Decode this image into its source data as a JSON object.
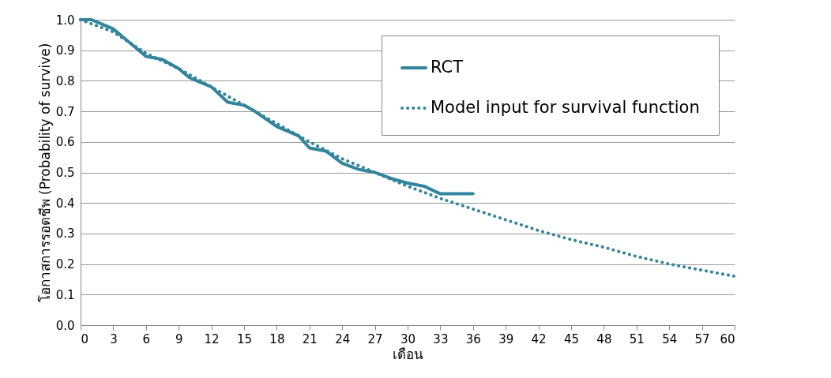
{
  "chart_data": {
    "type": "line",
    "xlabel": "เดือน",
    "ylabel": "โอกาสการรอดชีพ (Probability of survive)",
    "xlim": [
      0,
      60
    ],
    "xticks": [
      0,
      3,
      6,
      9,
      12,
      15,
      18,
      21,
      24,
      27,
      30,
      33,
      36,
      39,
      42,
      45,
      48,
      51,
      54,
      57,
      60
    ],
    "ylim": [
      0,
      1
    ],
    "yticks": [
      {
        "value": 0,
        "label": "0.0"
      },
      0.1,
      0.2,
      0.3,
      0.4,
      0.5,
      0.6,
      0.7,
      0.8,
      0.9,
      {
        "value": 1,
        "label": "1.0"
      }
    ],
    "grid": "y",
    "legend": "top right",
    "marker": "none",
    "series": [
      {
        "name": "RCT",
        "color": "#31859c",
        "line_style": "solid",
        "x": [
          0,
          1,
          3,
          4,
          5,
          6,
          7.5,
          9,
          10,
          12,
          13.5,
          15,
          16,
          18,
          20,
          21,
          22.5,
          24,
          25.5,
          27,
          28.5,
          30,
          31.5,
          33,
          36
        ],
        "values": [
          1,
          1,
          0.97,
          0.94,
          0.91,
          0.88,
          0.87,
          0.84,
          0.81,
          0.78,
          0.73,
          0.72,
          0.7,
          0.65,
          0.62,
          0.58,
          0.57,
          0.53,
          0.51,
          0.5,
          0.48,
          0.465,
          0.455,
          0.43,
          0.43
        ]
      },
      {
        "name": "Model input for survival function",
        "color": "#31859c",
        "line_style": "dotted",
        "x": [
          0,
          3,
          6,
          9,
          12,
          15,
          18,
          21,
          24,
          27,
          30,
          33,
          36,
          39,
          42,
          45,
          48,
          51,
          54,
          57,
          60
        ],
        "values": [
          1,
          0.96,
          0.89,
          0.84,
          0.78,
          0.72,
          0.66,
          0.6,
          0.545,
          0.5,
          0.455,
          0.415,
          0.38,
          0.345,
          0.31,
          0.28,
          0.255,
          0.225,
          0.2,
          0.18,
          0.16
        ]
      }
    ]
  }
}
